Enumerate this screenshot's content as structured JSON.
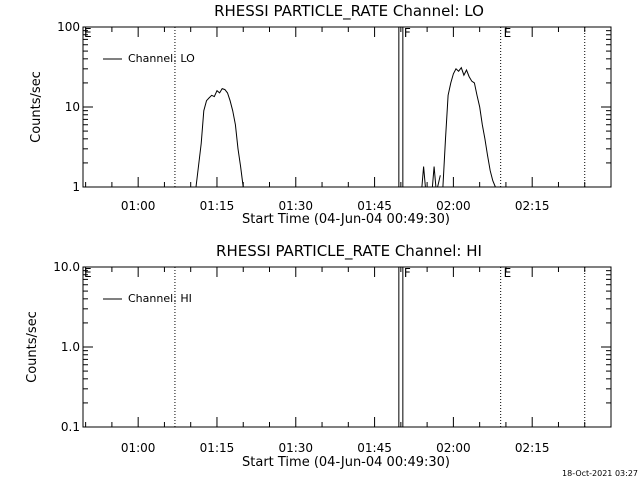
{
  "chart_data": [
    {
      "type": "line",
      "title": "RHESSI PARTICLE_RATE Channel: LO",
      "xlabel": "Start Time (04-Jun-04 00:49:30)",
      "ylabel": "Counts/sec",
      "yscale": "log",
      "ylim": [
        1,
        100
      ],
      "ytick_labels": [
        "1",
        "10",
        "100"
      ],
      "ytick_values": [
        1,
        10,
        100
      ],
      "xlim": [
        "00:49:30",
        "02:30:00"
      ],
      "xtick_labels": [
        "01:00",
        "01:15",
        "01:30",
        "01:45",
        "02:00",
        "02:15"
      ],
      "xtick_values": [
        "01:00",
        "01:15",
        "01:30",
        "01:45",
        "02:00",
        "02:15"
      ],
      "legend": {
        "entries": [
          "Channel: LO"
        ],
        "placement": "top-left"
      },
      "grid": false,
      "markers": [
        {
          "label": "E",
          "time": "00:49:30",
          "style": "letter"
        },
        {
          "time": "01:07",
          "style": "dotted"
        },
        {
          "label": "F",
          "time": "01:50",
          "style": "solid-pair"
        },
        {
          "label": "E",
          "time": "02:09",
          "style": "dotted"
        },
        {
          "time": "02:25",
          "style": "dotted"
        }
      ],
      "series": [
        {
          "name": "Channel: LO",
          "segments": [
            {
              "x": [
                "01:11",
                "01:12",
                "01:12:30",
                "01:13",
                "01:13:30",
                "01:14",
                "01:14:30",
                "01:15",
                "01:15:30",
                "01:16",
                "01:16:30",
                "01:17",
                "01:17:30",
                "01:18",
                "01:18:30",
                "01:19",
                "01:19:30",
                "01:20"
              ],
              "y": [
                1.0,
                3.5,
                9.0,
                12,
                13,
                14,
                13.5,
                16,
                15,
                17,
                16.5,
                15,
                12,
                9,
                6,
                3,
                1.8,
                1.0
              ]
            },
            {
              "x": [
                "01:54",
                "01:54:20",
                "01:54:40",
                "01:55",
                "01:56",
                "01:56:20",
                "01:56:40",
                "01:57",
                "01:57:30"
              ],
              "y": [
                1.0,
                1.8,
                1.0,
                1.0,
                1.0,
                1.8,
                1.0,
                1.0,
                1.4
              ]
            },
            {
              "x": [
                "01:58",
                "01:58:30",
                "01:59",
                "01:59:30",
                "02:00",
                "02:00:30",
                "02:01",
                "02:01:30",
                "02:02",
                "02:02:30",
                "02:03",
                "02:03:30",
                "02:04",
                "02:04:30",
                "02:05",
                "02:05:30",
                "02:06",
                "02:06:30",
                "02:07",
                "02:07:30",
                "02:08"
              ],
              "y": [
                1.0,
                4,
                14,
                20,
                26,
                30,
                28,
                31,
                25,
                29,
                24,
                21,
                20,
                14,
                10,
                6,
                4,
                2.5,
                1.6,
                1.2,
                1.0
              ]
            }
          ]
        }
      ]
    },
    {
      "type": "line",
      "title": "RHESSI PARTICLE_RATE Channel: HI",
      "xlabel": "Start Time (04-Jun-04 00:49:30)",
      "ylabel": "Counts/sec",
      "yscale": "log",
      "ylim": [
        0.1,
        10
      ],
      "ytick_labels": [
        "0.1",
        "1.0",
        "10.0"
      ],
      "ytick_values": [
        0.1,
        1,
        10
      ],
      "xlim": [
        "00:49:30",
        "02:30:00"
      ],
      "xtick_labels": [
        "01:00",
        "01:15",
        "01:30",
        "01:45",
        "02:00",
        "02:15"
      ],
      "xtick_values": [
        "01:00",
        "01:15",
        "01:30",
        "01:45",
        "02:00",
        "02:15"
      ],
      "legend": {
        "entries": [
          "Channel: HI"
        ],
        "placement": "top-left"
      },
      "grid": false,
      "markers": [
        {
          "label": "E",
          "time": "00:49:30",
          "style": "letter"
        },
        {
          "time": "01:07",
          "style": "dotted"
        },
        {
          "label": "F",
          "time": "01:50",
          "style": "solid-pair"
        },
        {
          "label": "E",
          "time": "02:09",
          "style": "dotted"
        },
        {
          "time": "02:25",
          "style": "dotted"
        }
      ],
      "series": [
        {
          "name": "Channel: HI",
          "segments": []
        }
      ]
    }
  ],
  "footer": {
    "timestamp": "18-Oct-2021 03:27"
  }
}
